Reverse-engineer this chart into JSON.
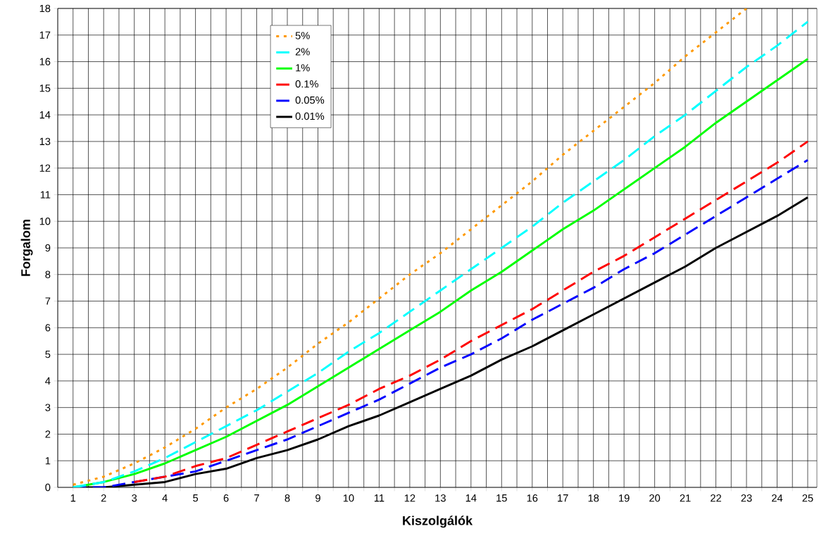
{
  "chart_data": {
    "type": "line",
    "xlabel": "Kiszolgálók",
    "ylabel": "Forgalom",
    "categories": [
      "1",
      "2",
      "3",
      "4",
      "5",
      "6",
      "7",
      "8",
      "9",
      "10",
      "11",
      "12",
      "13",
      "14",
      "15",
      "16",
      "17",
      "18",
      "19",
      "20",
      "21",
      "22",
      "23",
      "24",
      "25"
    ],
    "series": [
      {
        "name": "5%",
        "color": "#ff9900",
        "line_style": "dotted",
        "values": [
          0.1,
          0.4,
          0.9,
          1.5,
          2.2,
          3.0,
          3.7,
          4.5,
          5.4,
          6.2,
          7.1,
          8.0,
          8.8,
          9.7,
          10.6,
          11.5,
          12.5,
          13.4,
          14.3,
          15.2,
          16.2,
          17.1,
          18.0,
          null,
          null
        ]
      },
      {
        "name": "2%",
        "color": "#00ffff",
        "line_style": "dashed",
        "values": [
          0.0,
          0.2,
          0.6,
          1.1,
          1.7,
          2.3,
          2.9,
          3.6,
          4.3,
          5.1,
          5.8,
          6.6,
          7.4,
          8.2,
          9.0,
          9.8,
          10.7,
          11.5,
          12.3,
          13.2,
          14.0,
          14.9,
          15.8,
          16.6,
          17.5
        ]
      },
      {
        "name": "1%",
        "color": "#00ff00",
        "line_style": "solid",
        "values": [
          0.0,
          0.2,
          0.5,
          0.9,
          1.4,
          1.9,
          2.5,
          3.1,
          3.8,
          4.5,
          5.2,
          5.9,
          6.6,
          7.4,
          8.1,
          8.9,
          9.7,
          10.4,
          11.2,
          12.0,
          12.8,
          13.7,
          14.5,
          15.3,
          16.1
        ]
      },
      {
        "name": "0.1%",
        "color": "#ff0000",
        "line_style": "dashed",
        "values": [
          null,
          null,
          0.2,
          0.4,
          0.8,
          1.1,
          1.6,
          2.1,
          2.6,
          3.1,
          3.7,
          4.2,
          4.8,
          5.5,
          6.1,
          6.7,
          7.4,
          8.1,
          8.7,
          9.4,
          10.1,
          10.8,
          11.5,
          12.2,
          13.0
        ]
      },
      {
        "name": "0.05%",
        "color": "#0000ff",
        "line_style": "dashed",
        "values": [
          0.0,
          0.0,
          0.2,
          0.4,
          0.6,
          1.0,
          1.4,
          1.8,
          2.3,
          2.8,
          3.3,
          3.9,
          4.5,
          5.0,
          5.6,
          6.3,
          6.9,
          7.5,
          8.2,
          8.8,
          9.5,
          10.2,
          10.9,
          11.6,
          12.3
        ]
      },
      {
        "name": "0.01%",
        "color": "#000000",
        "line_style": "solid",
        "values": [
          0.0,
          0.0,
          0.1,
          0.2,
          0.5,
          0.7,
          1.1,
          1.4,
          1.8,
          2.3,
          2.7,
          3.2,
          3.7,
          4.2,
          4.8,
          5.3,
          5.9,
          6.5,
          7.1,
          7.7,
          8.3,
          9.0,
          9.6,
          10.2,
          10.9
        ]
      }
    ],
    "ylim": [
      0,
      18
    ],
    "yticks": [
      0,
      1,
      2,
      3,
      4,
      5,
      6,
      7,
      8,
      9,
      10,
      11,
      12,
      13,
      14,
      15,
      16,
      17,
      18
    ],
    "grid": true,
    "legend": "top left",
    "marker": "none"
  }
}
